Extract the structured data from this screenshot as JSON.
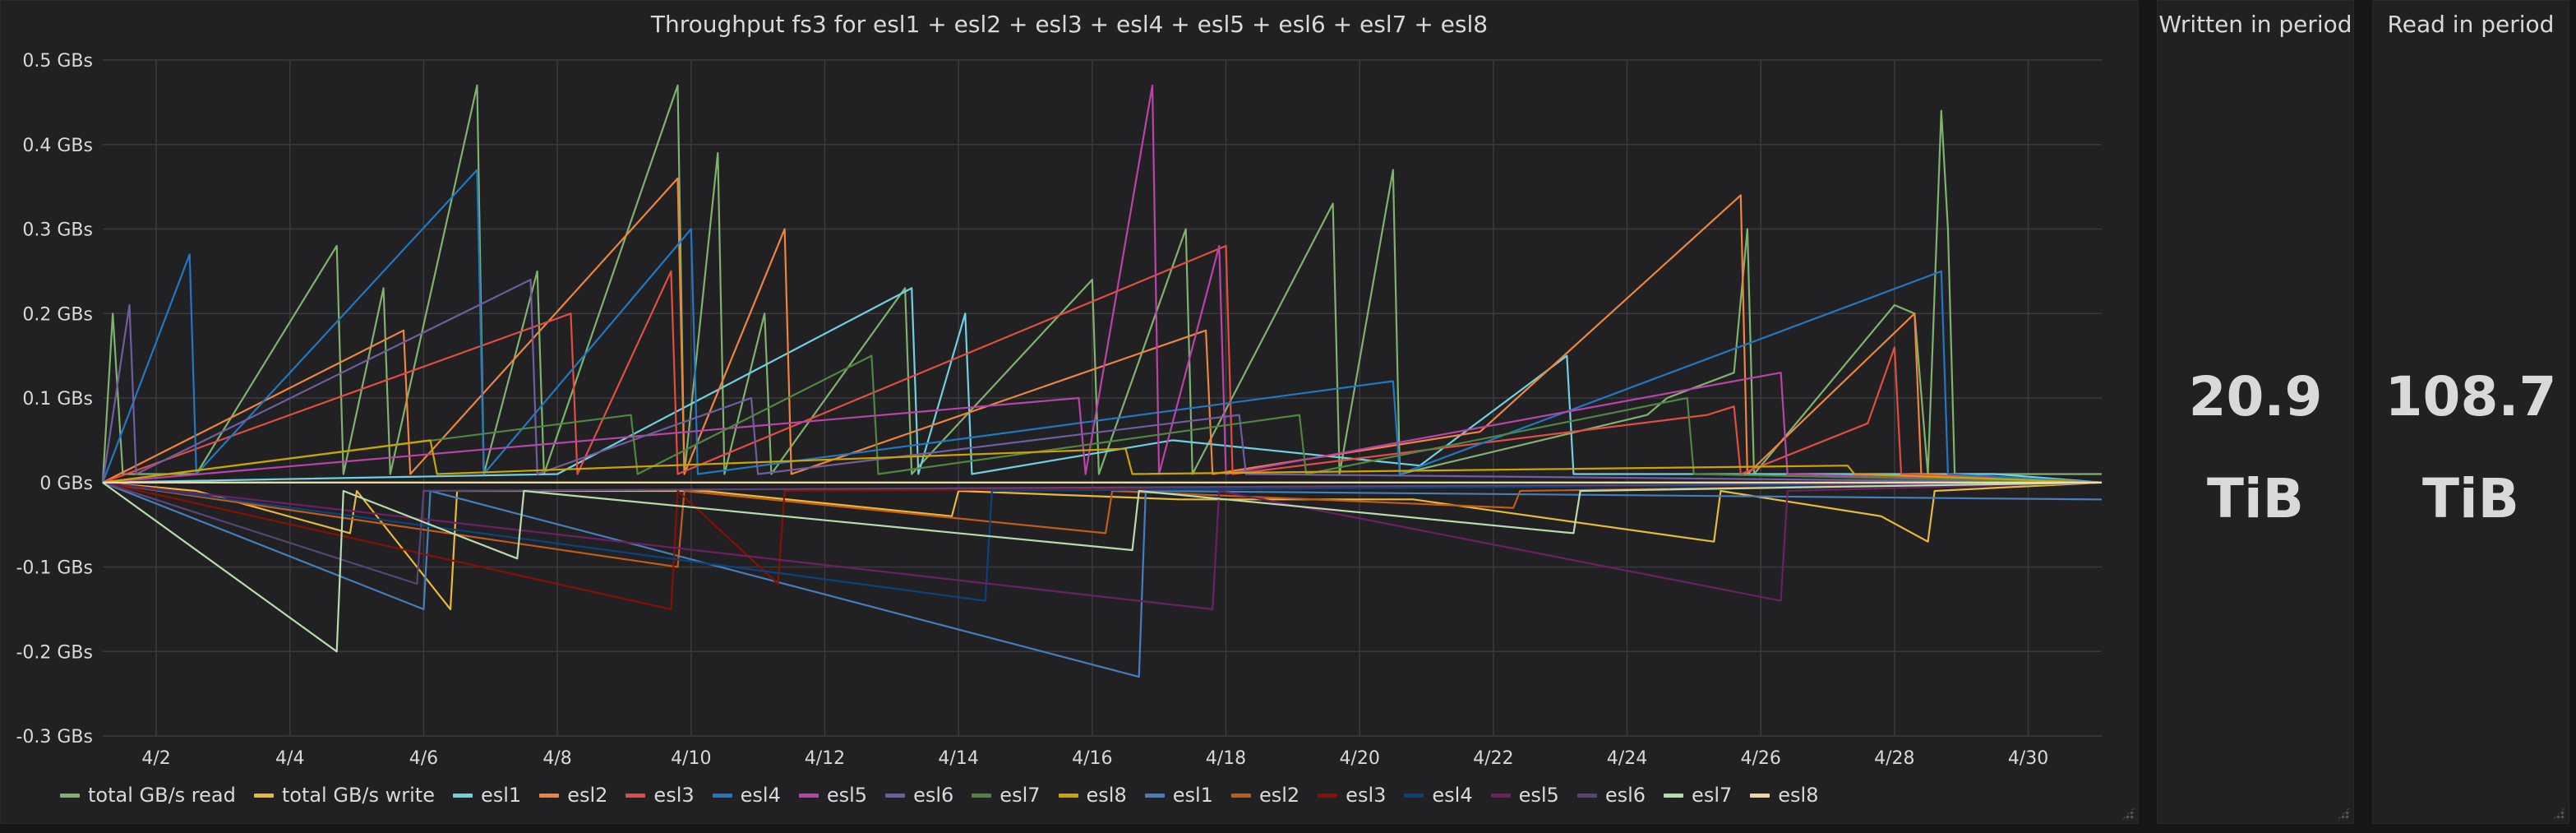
{
  "graph_panel": {
    "title": "Throughput fs3 for esl1 + esl2 + esl3 + esl4 + esl5 + esl6 + esl7 + esl8"
  },
  "written_panel": {
    "title": "Written in period",
    "value": "20.9",
    "unit": "TiB"
  },
  "read_panel": {
    "title": "Read in period",
    "value": "108.7",
    "unit": "TiB"
  },
  "colors": {
    "background": "#161719",
    "panel": "#212124",
    "grid": "#3a3a3d",
    "zero_line": "#f0e0a0"
  },
  "chart_data": {
    "type": "line",
    "title": "Throughput fs3 for esl1 + esl2 + esl3 + esl4 + esl5 + esl6 + esl7 + esl8",
    "xlabel": "",
    "ylabel": "",
    "ylim": [
      -0.3,
      0.5
    ],
    "y_ticks": [
      {
        "value": 0.5,
        "label": "0.5 GBs"
      },
      {
        "value": 0.4,
        "label": "0.4 GBs"
      },
      {
        "value": 0.3,
        "label": "0.3 GBs"
      },
      {
        "value": 0.2,
        "label": "0.2 GBs"
      },
      {
        "value": 0.1,
        "label": "0.1 GBs"
      },
      {
        "value": 0.0,
        "label": "0 GBs"
      },
      {
        "value": -0.1,
        "label": "-0.1 GBs"
      },
      {
        "value": -0.2,
        "label": "-0.2 GBs"
      },
      {
        "value": -0.3,
        "label": "-0.3 GBs"
      }
    ],
    "xlim": [
      1.2,
      31.1
    ],
    "x_ticks": [
      {
        "value": 2,
        "label": "4/2"
      },
      {
        "value": 4,
        "label": "4/4"
      },
      {
        "value": 6,
        "label": "4/6"
      },
      {
        "value": 8,
        "label": "4/8"
      },
      {
        "value": 10,
        "label": "4/10"
      },
      {
        "value": 12,
        "label": "4/12"
      },
      {
        "value": 14,
        "label": "4/14"
      },
      {
        "value": 16,
        "label": "4/16"
      },
      {
        "value": 18,
        "label": "4/18"
      },
      {
        "value": 20,
        "label": "4/20"
      },
      {
        "value": 22,
        "label": "4/22"
      },
      {
        "value": 24,
        "label": "4/24"
      },
      {
        "value": 26,
        "label": "4/26"
      },
      {
        "value": 28,
        "label": "4/28"
      },
      {
        "value": 30,
        "label": "4/30"
      }
    ],
    "grid": true,
    "legend_position": "bottom-left",
    "series": [
      {
        "name": "total GB/s read",
        "color": "#7eb26d",
        "points": [
          [
            1.2,
            0
          ],
          [
            1.35,
            0.2
          ],
          [
            1.5,
            0.01
          ],
          [
            2.6,
            0.01
          ],
          [
            4.7,
            0.28
          ],
          [
            4.8,
            0.01
          ],
          [
            5.4,
            0.23
          ],
          [
            5.5,
            0.01
          ],
          [
            6.8,
            0.47
          ],
          [
            6.9,
            0.01
          ],
          [
            7.7,
            0.25
          ],
          [
            7.8,
            0.01
          ],
          [
            9.8,
            0.47
          ],
          [
            9.9,
            0.01
          ],
          [
            10.4,
            0.39
          ],
          [
            10.5,
            0.01
          ],
          [
            11.1,
            0.2
          ],
          [
            11.2,
            0.01
          ],
          [
            13.2,
            0.23
          ],
          [
            13.3,
            0.01
          ],
          [
            16,
            0.24
          ],
          [
            16.1,
            0.01
          ],
          [
            17.4,
            0.3
          ],
          [
            17.5,
            0.01
          ],
          [
            19.6,
            0.33
          ],
          [
            19.7,
            0.01
          ],
          [
            20.5,
            0.37
          ],
          [
            20.6,
            0.01
          ],
          [
            24.3,
            0.08
          ],
          [
            24.6,
            0.1
          ],
          [
            25.6,
            0.13
          ],
          [
            25.8,
            0.3
          ],
          [
            25.9,
            0.01
          ],
          [
            28,
            0.21
          ],
          [
            28.3,
            0.2
          ],
          [
            28.5,
            0.01
          ],
          [
            28.7,
            0.44
          ],
          [
            28.8,
            0.3
          ],
          [
            28.9,
            0.01
          ],
          [
            31.1,
            0.01
          ]
        ]
      },
      {
        "name": "total GB/s write",
        "color": "#eab839",
        "points": [
          [
            1.2,
            0
          ],
          [
            2.6,
            -0.01
          ],
          [
            4.9,
            -0.06
          ],
          [
            5,
            -0.01
          ],
          [
            6.4,
            -0.15
          ],
          [
            6.5,
            -0.01
          ],
          [
            10.2,
            -0.01
          ],
          [
            13.9,
            -0.04
          ],
          [
            14,
            -0.01
          ],
          [
            17.3,
            -0.02
          ],
          [
            20.8,
            -0.02
          ],
          [
            25.3,
            -0.07
          ],
          [
            25.4,
            -0.01
          ],
          [
            27.8,
            -0.04
          ],
          [
            28.5,
            -0.07
          ],
          [
            28.6,
            -0.01
          ],
          [
            31.1,
            0
          ]
        ]
      },
      {
        "name": "esl1",
        "color": "#6ed0e0",
        "points": [
          [
            1.2,
            0
          ],
          [
            8,
            0.01
          ],
          [
            13.3,
            0.23
          ],
          [
            13.4,
            0.01
          ],
          [
            14.1,
            0.2
          ],
          [
            14.2,
            0.01
          ],
          [
            17.2,
            0.05
          ],
          [
            20.9,
            0.02
          ],
          [
            23.1,
            0.15
          ],
          [
            23.2,
            0.01
          ],
          [
            29.5,
            0.01
          ],
          [
            31.1,
            0
          ]
        ]
      },
      {
        "name": "esl2",
        "color": "#ef843c",
        "points": [
          [
            1.2,
            0
          ],
          [
            5.7,
            0.18
          ],
          [
            5.8,
            0.01
          ],
          [
            9.8,
            0.36
          ],
          [
            9.9,
            0.01
          ],
          [
            11.4,
            0.3
          ],
          [
            11.5,
            0.01
          ],
          [
            17.7,
            0.18
          ],
          [
            17.8,
            0.01
          ],
          [
            21.8,
            0.06
          ],
          [
            25.7,
            0.34
          ],
          [
            25.8,
            0.01
          ],
          [
            28.3,
            0.2
          ],
          [
            28.4,
            0.01
          ],
          [
            31.1,
            0
          ]
        ]
      },
      {
        "name": "esl3",
        "color": "#e24d42",
        "points": [
          [
            1.2,
            0
          ],
          [
            8.2,
            0.2
          ],
          [
            8.3,
            0.01
          ],
          [
            9.7,
            0.25
          ],
          [
            9.8,
            0.01
          ],
          [
            18,
            0.28
          ],
          [
            18.1,
            0.01
          ],
          [
            25.2,
            0.08
          ],
          [
            25.6,
            0.09
          ],
          [
            25.7,
            0.01
          ],
          [
            27.6,
            0.07
          ],
          [
            28,
            0.16
          ],
          [
            28.1,
            0.01
          ],
          [
            31.1,
            0
          ]
        ]
      },
      {
        "name": "esl4",
        "color": "#1f78c1",
        "points": [
          [
            1.2,
            0
          ],
          [
            2.5,
            0.27
          ],
          [
            2.6,
            0.01
          ],
          [
            6.8,
            0.37
          ],
          [
            6.9,
            0.01
          ],
          [
            10,
            0.3
          ],
          [
            10.1,
            0.01
          ],
          [
            20.5,
            0.12
          ],
          [
            20.6,
            0.01
          ],
          [
            28.7,
            0.25
          ],
          [
            28.8,
            0.01
          ],
          [
            31.1,
            0
          ]
        ]
      },
      {
        "name": "esl5",
        "color": "#ba43a9",
        "points": [
          [
            1.2,
            0
          ],
          [
            15.8,
            0.1
          ],
          [
            15.9,
            0.01
          ],
          [
            16.9,
            0.47
          ],
          [
            17,
            0.01
          ],
          [
            17.9,
            0.28
          ],
          [
            18,
            0.01
          ],
          [
            26.3,
            0.13
          ],
          [
            26.4,
            0.01
          ],
          [
            31.1,
            0
          ]
        ]
      },
      {
        "name": "esl6",
        "color": "#705da0",
        "points": [
          [
            1.2,
            0
          ],
          [
            1.6,
            0.21
          ],
          [
            1.7,
            0.01
          ],
          [
            7.6,
            0.24
          ],
          [
            7.7,
            0.01
          ],
          [
            10.9,
            0.1
          ],
          [
            11,
            0.01
          ],
          [
            18.2,
            0.08
          ],
          [
            18.3,
            0.01
          ],
          [
            31.1,
            0
          ]
        ]
      },
      {
        "name": "esl7",
        "color": "#508642",
        "points": [
          [
            1.2,
            0
          ],
          [
            9.1,
            0.08
          ],
          [
            9.2,
            0.01
          ],
          [
            12.7,
            0.15
          ],
          [
            12.8,
            0.01
          ],
          [
            19.1,
            0.08
          ],
          [
            19.2,
            0.01
          ],
          [
            24.9,
            0.1
          ],
          [
            25,
            0.01
          ],
          [
            31.1,
            0
          ]
        ]
      },
      {
        "name": "esl8",
        "color": "#cca300",
        "points": [
          [
            1.2,
            0
          ],
          [
            6.1,
            0.05
          ],
          [
            6.2,
            0.01
          ],
          [
            16.5,
            0.04
          ],
          [
            16.6,
            0.01
          ],
          [
            27.3,
            0.02
          ],
          [
            27.4,
            0.01
          ],
          [
            31.1,
            0
          ]
        ]
      },
      {
        "name": "esl1",
        "color": "#447ebc",
        "points": [
          [
            1.2,
            0
          ],
          [
            6,
            -0.15
          ],
          [
            6.1,
            -0.01
          ],
          [
            16.7,
            -0.23
          ],
          [
            16.8,
            -0.01
          ],
          [
            31,
            -0.02
          ],
          [
            31.1,
            -0.02
          ]
        ]
      },
      {
        "name": "esl2",
        "color": "#c15c17",
        "points": [
          [
            1.2,
            0
          ],
          [
            9.8,
            -0.1
          ],
          [
            9.9,
            -0.01
          ],
          [
            16.2,
            -0.06
          ],
          [
            16.3,
            -0.01
          ],
          [
            22.3,
            -0.03
          ],
          [
            22.4,
            -0.01
          ],
          [
            31.1,
            0
          ]
        ]
      },
      {
        "name": "esl3",
        "color": "#890f02",
        "points": [
          [
            1.2,
            0
          ],
          [
            9.7,
            -0.15
          ],
          [
            9.8,
            -0.01
          ],
          [
            11.3,
            -0.12
          ],
          [
            11.4,
            -0.01
          ],
          [
            31.1,
            0
          ]
        ]
      },
      {
        "name": "esl4",
        "color": "#0a437c",
        "points": [
          [
            1.2,
            0
          ],
          [
            14.4,
            -0.14
          ],
          [
            14.5,
            -0.01
          ],
          [
            31.1,
            0
          ]
        ]
      },
      {
        "name": "esl5",
        "color": "#6d1f62",
        "points": [
          [
            1.2,
            0
          ],
          [
            17.8,
            -0.15
          ],
          [
            17.9,
            -0.01
          ],
          [
            26.3,
            -0.14
          ],
          [
            26.4,
            -0.01
          ],
          [
            31.1,
            0
          ]
        ]
      },
      {
        "name": "esl6",
        "color": "#584477",
        "points": [
          [
            1.2,
            0
          ],
          [
            5.9,
            -0.12
          ],
          [
            6,
            -0.01
          ],
          [
            31.1,
            0
          ]
        ]
      },
      {
        "name": "esl7",
        "color": "#b7dbab",
        "points": [
          [
            1.2,
            0
          ],
          [
            4.7,
            -0.2
          ],
          [
            4.8,
            -0.01
          ],
          [
            7.4,
            -0.09
          ],
          [
            7.5,
            -0.01
          ],
          [
            16.6,
            -0.08
          ],
          [
            16.7,
            -0.01
          ],
          [
            23.2,
            -0.06
          ],
          [
            23.3,
            -0.01
          ],
          [
            31.1,
            0
          ]
        ]
      },
      {
        "name": "esl8",
        "color": "#f4d598",
        "points": [
          [
            1.2,
            0
          ],
          [
            31.1,
            0
          ]
        ]
      }
    ]
  }
}
